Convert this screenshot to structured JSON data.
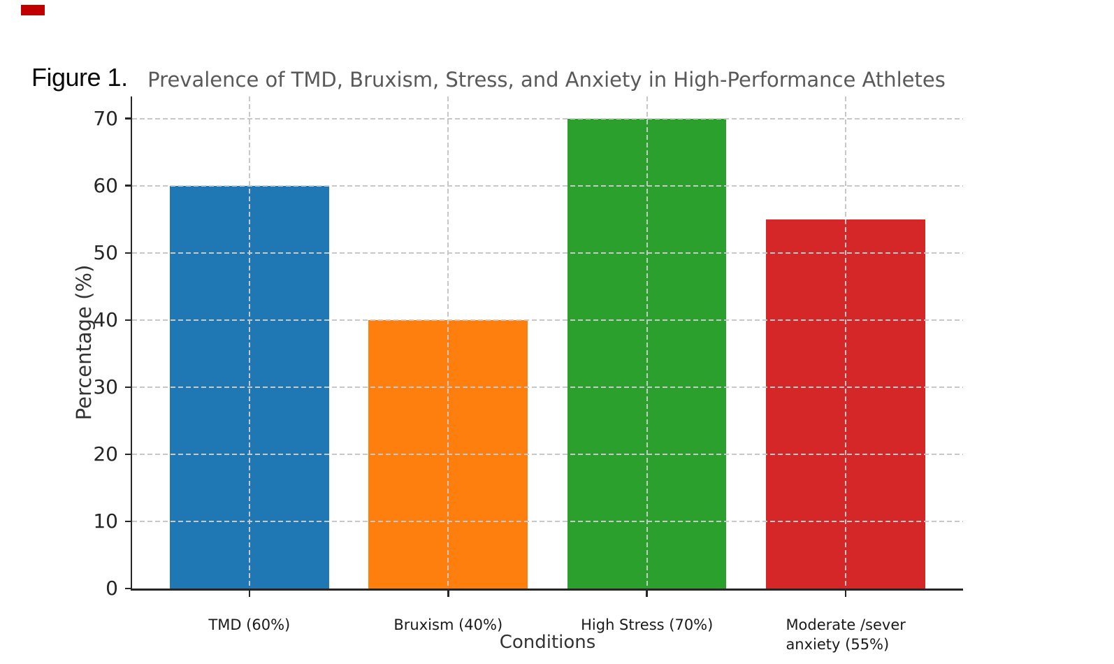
{
  "page": {
    "figure_label": "Figure 1."
  },
  "annotations": {
    "corner_mark_color": "#c00000"
  },
  "chart_data": {
    "type": "bar",
    "title": "Prevalence of TMD, Bruxism, Stress, and Anxiety in High-Performance Athletes",
    "xlabel": "Conditions",
    "ylabel": "Percentage (%)",
    "categories": [
      "TMD (60%)",
      "Bruxism (40%)",
      "High Stress (70%)",
      "Moderate /sever\nanxiety (55%)"
    ],
    "values": [
      60,
      40,
      70,
      55
    ],
    "bar_colors": [
      "#1f77b4",
      "#ff7f0e",
      "#2ca02c",
      "#d62728"
    ],
    "yticks": [
      0,
      10,
      20,
      30,
      40,
      50,
      60,
      70
    ],
    "ylim": [
      0,
      73.3
    ],
    "xlim": [
      -0.59,
      3.59
    ],
    "bar_width_fraction": 0.8,
    "grid": "dashed both axes, drawn over bars",
    "legend": "none",
    "title_color": "#595959",
    "grid_color": "#c8c8c8",
    "axis_color": "#262626"
  }
}
